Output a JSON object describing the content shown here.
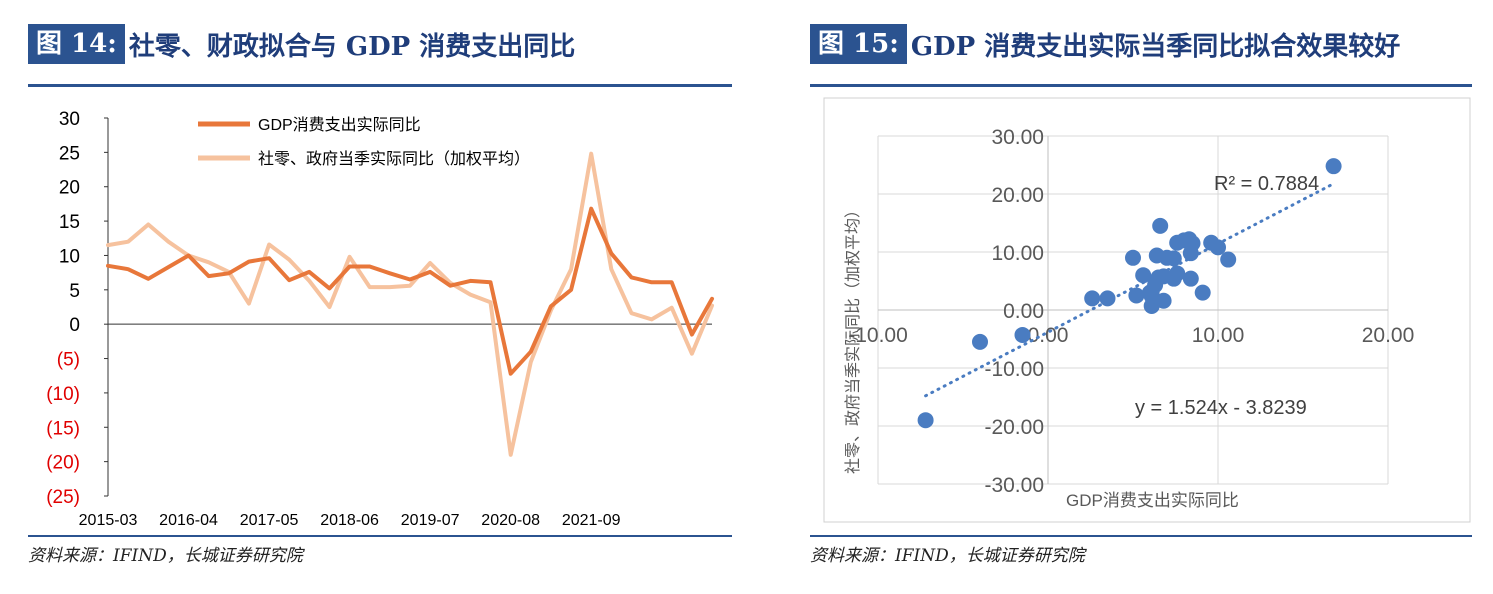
{
  "fig14": {
    "num": "图 14:",
    "title": "社零、财政拟合与 GDP 消费支出同比",
    "source": "资料来源：IFIND，长城证券研究院",
    "legend": [
      "GDP消费支出实际同比",
      "社零、政府当季实际同比（加权平均）"
    ],
    "colors": {
      "series1": "#e8773a",
      "series2": "#f6c29e",
      "negative_tick": "#e00000"
    }
  },
  "fig15": {
    "num": "图 15:",
    "title": "GDP 消费支出实际当季同比拟合效果较好",
    "source": "资料来源：IFIND，长城证券研究院",
    "r2_label": "R² = 0.7884",
    "eq_label": "y = 1.524x - 3.8239",
    "colors": {
      "point": "#4a7cc1"
    }
  },
  "chart_data": [
    {
      "type": "line",
      "x_ticks": [
        "2015-03",
        "2016-04",
        "2017-05",
        "2018-06",
        "2019-07",
        "2020-08",
        "2021-09"
      ],
      "y_ticks": [
        "30",
        "25",
        "20",
        "15",
        "10",
        "5",
        "0",
        "(5)",
        "(10)",
        "(15)",
        "(20)",
        "(25)"
      ],
      "ylim": [
        -25,
        30
      ],
      "series": [
        {
          "name": "GDP消费支出实际同比",
          "values": [
            8.5,
            8.0,
            6.6,
            8.3,
            10.0,
            7.0,
            7.4,
            9.1,
            9.6,
            6.4,
            7.6,
            5.2,
            8.4,
            8.4,
            7.4,
            6.5,
            7.6,
            5.6,
            6.3,
            6.1,
            -7.2,
            -4.0,
            2.6,
            5.0,
            16.8,
            10.3,
            6.8,
            6.1,
            6.1,
            -1.5,
            3.7
          ]
        },
        {
          "name": "社零、政府当季实际同比（加权平均）",
          "values": [
            11.5,
            12.0,
            14.5,
            12.0,
            10.0,
            9.0,
            7.6,
            3.0,
            11.6,
            9.4,
            6.3,
            2.5,
            9.8,
            5.4,
            5.4,
            5.6,
            8.9,
            6.0,
            4.3,
            3.2,
            -19.0,
            -5.5,
            2.0,
            8.0,
            24.8,
            8.0,
            1.6,
            0.7,
            2.4,
            -4.3,
            2.7
          ]
        }
      ]
    },
    {
      "type": "scatter",
      "xlabel": "GDP消费支出实际同比",
      "ylabel": "社零、政府当季实际同比（加权平均）",
      "x_ticks": [
        "-10.00",
        "0.00",
        "10.00",
        "20.00"
      ],
      "y_ticks": [
        "30.00",
        "20.00",
        "10.00",
        "0.00",
        "-10.00",
        "-20.00",
        "-30.00"
      ],
      "xlim": [
        -10,
        20
      ],
      "ylim": [
        -30,
        30
      ],
      "trendline": {
        "slope": 1.524,
        "intercept": -3.8239
      },
      "x": [
        -7.2,
        -4.0,
        -1.5,
        2.6,
        3.5,
        5.0,
        5.2,
        5.6,
        6.0,
        6.1,
        6.1,
        6.1,
        6.3,
        6.4,
        6.5,
        6.6,
        6.8,
        6.8,
        7.0,
        7.4,
        7.4,
        7.6,
        7.6,
        8.0,
        8.3,
        8.4,
        8.4,
        8.5,
        9.1,
        9.6,
        10.0,
        10.6,
        16.8
      ],
      "y": [
        -19.0,
        -5.5,
        -4.3,
        2.0,
        2.0,
        9.0,
        2.5,
        6.0,
        3.0,
        3.2,
        0.7,
        2.4,
        4.3,
        9.4,
        5.6,
        14.5,
        5.8,
        1.6,
        9.0,
        8.9,
        5.4,
        6.3,
        11.6,
        12.0,
        12.2,
        5.4,
        9.8,
        11.5,
        3.0,
        11.6,
        10.8,
        8.7,
        24.8
      ]
    }
  ]
}
